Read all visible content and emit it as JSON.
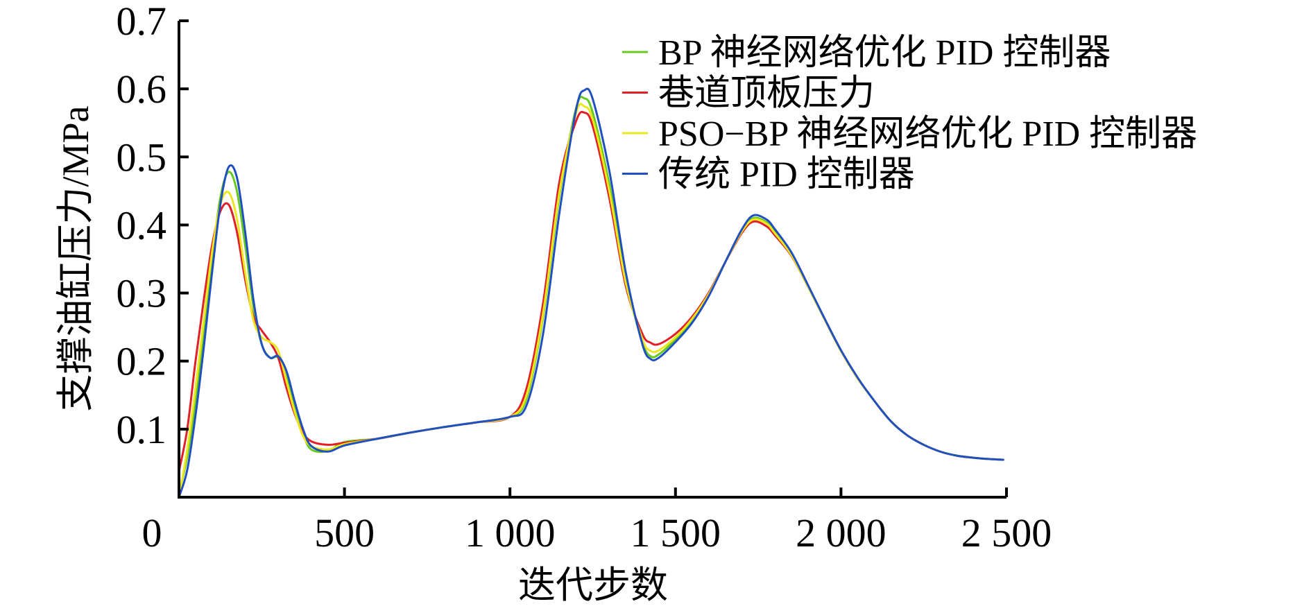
{
  "chart_data": {
    "type": "line",
    "xlabel": "迭代步数",
    "ylabel": "支撑油缸压力/MPa",
    "xlim": [
      0,
      2500
    ],
    "ylim": [
      0,
      0.7
    ],
    "x_ticks": [
      "0",
      "500",
      "1 000",
      "1 500",
      "2 000",
      "2 500"
    ],
    "x_tick_values": [
      0,
      500,
      1000,
      1500,
      2000,
      2500
    ],
    "y_ticks": [
      "0.1",
      "0.2",
      "0.3",
      "0.4",
      "0.5",
      "0.6",
      "0.7"
    ],
    "y_tick_values": [
      0.1,
      0.2,
      0.3,
      0.4,
      0.5,
      0.6,
      0.7
    ],
    "grid": false,
    "legend_position": "top-right",
    "x": [
      0,
      25,
      50,
      75,
      100,
      125,
      150,
      175,
      200,
      225,
      250,
      275,
      300,
      325,
      350,
      375,
      400,
      450,
      500,
      600,
      700,
      800,
      900,
      1000,
      1050,
      1100,
      1150,
      1200,
      1225,
      1250,
      1300,
      1350,
      1400,
      1425,
      1450,
      1500,
      1550,
      1600,
      1650,
      1700,
      1735,
      1775,
      1800,
      1850,
      1900,
      1950,
      2000,
      2050,
      2100,
      2150,
      2200,
      2250,
      2300,
      2350,
      2400,
      2450,
      2490
    ],
    "series": [
      {
        "name": "BP 神经网络优化 PID 控制器",
        "color": "#66c91e",
        "values": [
          0.005,
          0.06,
          0.14,
          0.24,
          0.35,
          0.44,
          0.478,
          0.45,
          0.37,
          0.28,
          0.225,
          0.205,
          0.205,
          0.175,
          0.13,
          0.093,
          0.07,
          0.068,
          0.081,
          0.086,
          0.095,
          0.103,
          0.11,
          0.118,
          0.145,
          0.265,
          0.445,
          0.572,
          0.586,
          0.565,
          0.46,
          0.32,
          0.228,
          0.207,
          0.21,
          0.232,
          0.26,
          0.297,
          0.345,
          0.39,
          0.41,
          0.404,
          0.39,
          0.357,
          0.31,
          0.262,
          0.215,
          0.175,
          0.142,
          0.112,
          0.091,
          0.077,
          0.067,
          0.061,
          0.058,
          0.056,
          0.055
        ]
      },
      {
        "name": "巷道顶板压力",
        "color": "#e11f26",
        "values": [
          0.038,
          0.1,
          0.2,
          0.29,
          0.37,
          0.42,
          0.43,
          0.39,
          0.32,
          0.265,
          0.245,
          0.228,
          0.205,
          0.16,
          0.122,
          0.095,
          0.082,
          0.077,
          0.08,
          0.086,
          0.095,
          0.103,
          0.11,
          0.118,
          0.16,
          0.285,
          0.465,
          0.553,
          0.565,
          0.545,
          0.44,
          0.31,
          0.24,
          0.227,
          0.225,
          0.24,
          0.265,
          0.3,
          0.345,
          0.388,
          0.405,
          0.398,
          0.385,
          0.355,
          0.31,
          0.262,
          0.215,
          0.175,
          0.142,
          0.112,
          0.091,
          0.077,
          0.067,
          0.061,
          0.058,
          0.056,
          0.055
        ]
      },
      {
        "name": "PSO−BP 神经网络优化 PID 控制器",
        "color": "#ece61e",
        "values": [
          0.0,
          0.07,
          0.16,
          0.26,
          0.36,
          0.43,
          0.448,
          0.41,
          0.33,
          0.26,
          0.235,
          0.228,
          0.215,
          0.17,
          0.125,
          0.09,
          0.075,
          0.07,
          0.078,
          0.086,
          0.095,
          0.103,
          0.11,
          0.118,
          0.15,
          0.27,
          0.45,
          0.565,
          0.574,
          0.555,
          0.45,
          0.315,
          0.232,
          0.215,
          0.216,
          0.235,
          0.262,
          0.298,
          0.345,
          0.39,
          0.408,
          0.402,
          0.388,
          0.356,
          0.31,
          0.262,
          0.215,
          0.175,
          0.142,
          0.112,
          0.091,
          0.077,
          0.067,
          0.061,
          0.058,
          0.056,
          0.055
        ]
      },
      {
        "name": "传统 PID 控制器",
        "color": "#2050c0",
        "values": [
          0.0,
          0.04,
          0.12,
          0.22,
          0.33,
          0.43,
          0.485,
          0.47,
          0.39,
          0.29,
          0.225,
          0.205,
          0.207,
          0.185,
          0.14,
          0.1,
          0.075,
          0.067,
          0.076,
          0.086,
          0.095,
          0.103,
          0.11,
          0.118,
          0.135,
          0.24,
          0.42,
          0.57,
          0.598,
          0.585,
          0.48,
          0.33,
          0.225,
          0.203,
          0.205,
          0.228,
          0.256,
          0.295,
          0.345,
          0.393,
          0.414,
          0.408,
          0.394,
          0.36,
          0.312,
          0.263,
          0.216,
          0.176,
          0.142,
          0.112,
          0.091,
          0.077,
          0.067,
          0.061,
          0.058,
          0.056,
          0.055
        ]
      }
    ]
  }
}
